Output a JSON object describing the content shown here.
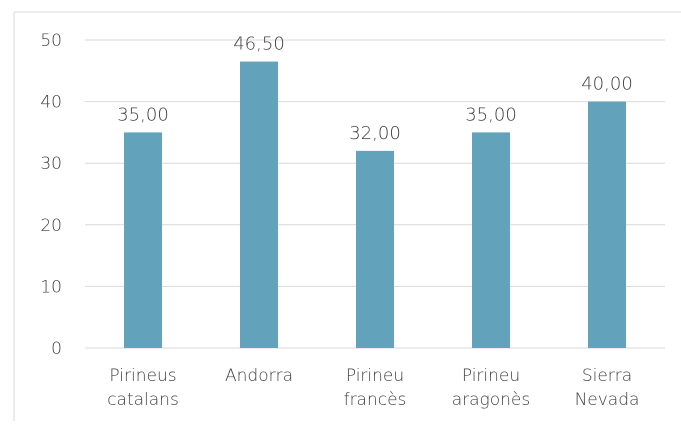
{
  "chart_data": {
    "type": "bar",
    "categories": [
      [
        "Pirineus",
        "catalans"
      ],
      [
        "Andorra"
      ],
      [
        "Pirineu",
        "francès"
      ],
      [
        "Pirineu",
        "aragonès"
      ],
      [
        "Sierra",
        "Nevada"
      ]
    ],
    "values": [
      35.0,
      46.5,
      32.0,
      35.0,
      40.0
    ],
    "data_labels": [
      "35,00",
      "46,50",
      "32,00",
      "35,00",
      "40,00"
    ],
    "y_ticks": [
      "0",
      "10",
      "20",
      "30",
      "40",
      "50"
    ],
    "ylim": [
      0,
      50
    ],
    "grid": true,
    "legend": "none",
    "bar_color": "#62a3bb",
    "grid_color": "#d9d9d9",
    "text_color": "#404040"
  }
}
